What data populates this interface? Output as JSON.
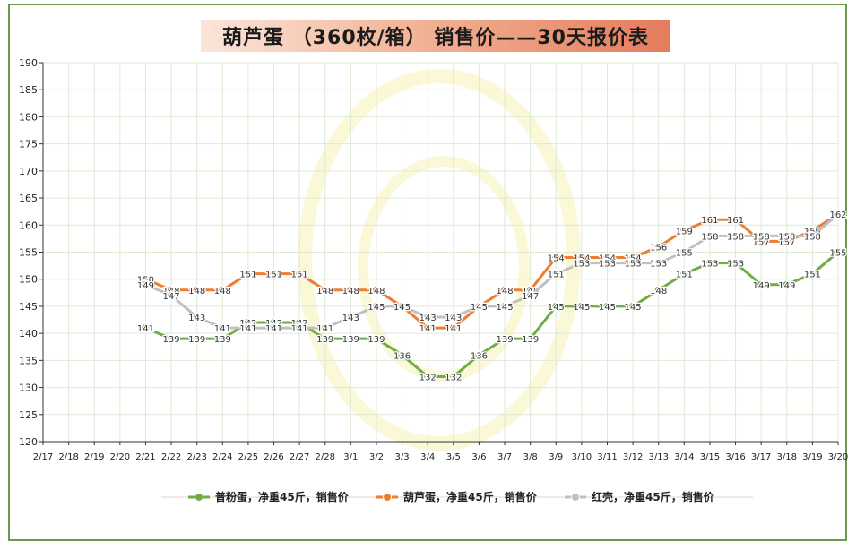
{
  "title": "葫芦蛋 （360枚/箱） 销售价——30天报价表",
  "colors": {
    "green": "#70ad47",
    "orange": "#ed7d31",
    "gray": "#c0c0c0",
    "frame": "#6a9a4a"
  },
  "chart_data": {
    "type": "line",
    "title": "葫芦蛋 （360枚/箱） 销售价——30天报价表",
    "xlabel": "",
    "ylabel": "",
    "ylim": [
      120,
      190
    ],
    "yticks": [
      120,
      125,
      130,
      135,
      140,
      145,
      150,
      155,
      160,
      165,
      170,
      175,
      180,
      185,
      190
    ],
    "grid": true,
    "legend_position": "bottom",
    "categories": [
      "2/17",
      "2/18",
      "2/19",
      "2/20",
      "2/21",
      "2/22",
      "2/23",
      "2/24",
      "2/25",
      "2/26",
      "2/27",
      "2/28",
      "3/1",
      "3/2",
      "3/3",
      "3/4",
      "3/5",
      "3/6",
      "3/7",
      "3/8",
      "3/9",
      "3/10",
      "3/11",
      "3/12",
      "3/13",
      "3/14",
      "3/15",
      "3/16",
      "3/17",
      "3/18",
      "3/19",
      "3/20"
    ],
    "series": [
      {
        "name": "普粉蛋，净重45斤，销售价",
        "color": "#70ad47",
        "values": [
          null,
          null,
          null,
          null,
          141,
          139,
          139,
          139,
          142,
          142,
          142,
          139,
          139,
          139,
          136,
          132,
          132,
          136,
          139,
          139,
          145,
          145,
          145,
          145,
          148,
          151,
          153,
          153,
          149,
          149,
          151,
          155
        ]
      },
      {
        "name": "葫芦蛋，净重45斤，销售价",
        "color": "#ed7d31",
        "values": [
          null,
          null,
          null,
          null,
          150,
          148,
          148,
          148,
          151,
          151,
          151,
          148,
          148,
          148,
          145,
          141,
          141,
          145,
          148,
          148,
          154,
          154,
          154,
          154,
          156,
          159,
          161,
          161,
          157,
          157,
          159,
          162
        ]
      },
      {
        "name": "红壳，净重45斤，销售价",
        "color": "#c0c0c0",
        "values": [
          null,
          null,
          null,
          null,
          149,
          147,
          143,
          141,
          141,
          141,
          141,
          141,
          143,
          145,
          145,
          143,
          143,
          145,
          145,
          147,
          151,
          153,
          153,
          153,
          153,
          155,
          158,
          158,
          158,
          158,
          158,
          162
        ]
      }
    ]
  }
}
